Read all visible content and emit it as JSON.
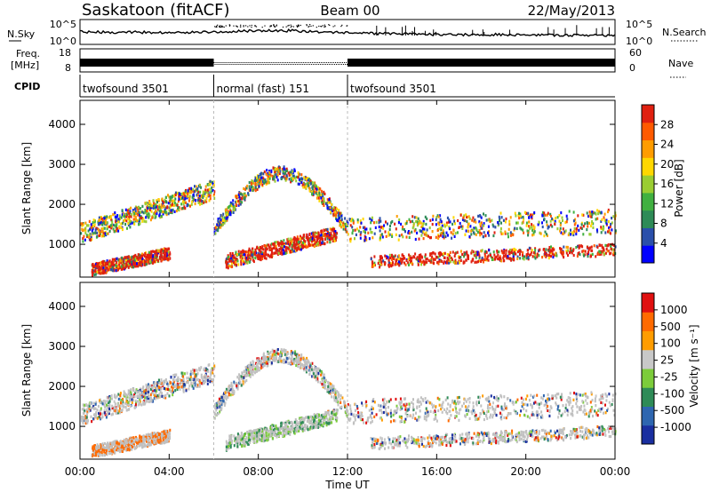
{
  "header": {
    "station": "Saskatoon (fitACF)",
    "beam": "Beam 00",
    "date": "22/May/2013"
  },
  "noise_panel": {
    "left_label": "N.Sky",
    "right_label": "N.Search",
    "ticks": [
      "10^5",
      "10^0"
    ]
  },
  "freq_panel": {
    "left_label_line1": "Freq.",
    "left_label_line2": "[MHz]",
    "left_ticks": [
      "18",
      "8"
    ],
    "right_ticks": [
      "60",
      "0"
    ],
    "right_label": "Nave"
  },
  "cpid_panel": {
    "label": "CPID",
    "segments": [
      {
        "name": "twofsound 3501",
        "start": 0,
        "end": 6
      },
      {
        "name": "normal (fast) 151",
        "start": 6,
        "end": 12
      },
      {
        "name": "twofsound 3501",
        "start": 12,
        "end": 24
      }
    ]
  },
  "chart_data": {
    "type": "heatmap",
    "xlabel": "Time UT",
    "x_ticks": [
      "00:00",
      "04:00",
      "08:00",
      "12:00",
      "16:00",
      "20:00",
      "00:00"
    ],
    "x_range_hours": [
      0,
      24
    ],
    "ylabel": "Slant Range [km]",
    "y_ticks": [
      1000,
      2000,
      3000,
      4000
    ],
    "y_range": [
      180,
      4600
    ],
    "mode_boundaries_hours": [
      6,
      12
    ],
    "power": {
      "label": "Power [dB]",
      "colorbar_ticks": [
        "28",
        "24",
        "20",
        "16",
        "12",
        "8",
        "4"
      ],
      "colors": [
        "#0000ff",
        "#2a4faa",
        "#2e8b57",
        "#40b040",
        "#9acd32",
        "#ffd700",
        "#ff9c00",
        "#ff5a00",
        "#e02010"
      ]
    },
    "velocity": {
      "label": "Velocity [m s⁻¹]",
      "colorbar_ticks": [
        "1000",
        "500",
        "100",
        "25",
        "-25",
        "-100",
        "-500",
        "-1000"
      ],
      "colors": [
        "#1a2fa0",
        "#2e66b0",
        "#2e8b57",
        "#7ccc3a",
        "#c8c8c8",
        "#ff9c00",
        "#ff6a00",
        "#e01010"
      ],
      "ground_scatter_color": "#c0c0c0"
    }
  }
}
